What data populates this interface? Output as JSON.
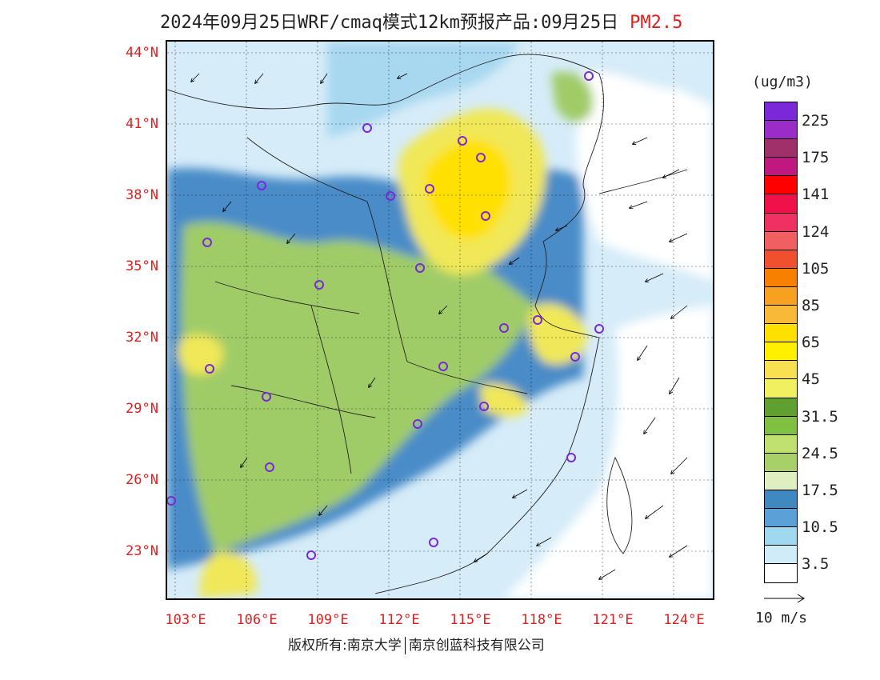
{
  "title": {
    "main": "2024年09月25日WRF/cmaq模式12km预报产品:09月25日",
    "pollutant": "PM2.5"
  },
  "lat_labels": [
    "44°N",
    "41°N",
    "38°N",
    "35°N",
    "32°N",
    "29°N",
    "26°N",
    "23°N"
  ],
  "lon_labels": [
    "103°E",
    "106°E",
    "109°E",
    "112°E",
    "115°E",
    "118°E",
    "121°E",
    "124°E"
  ],
  "colorbar": {
    "unit": "(ug/m3)",
    "colors": [
      "#7b28d8",
      "#9a2cc8",
      "#a0306a",
      "#c01880",
      "#ff0000",
      "#f0104a",
      "#f03060",
      "#f06060",
      "#f05030",
      "#f88000",
      "#f8a020",
      "#f8b838",
      "#ffe000",
      "#fff000",
      "#f8e050",
      "#f0f060",
      "#60a030",
      "#80c040",
      "#c0e070",
      "#a8d068",
      "#e0eec0",
      "#4088c0",
      "#5ca0d8",
      "#a0d8f0",
      "#d0ecf8",
      "#ffffff"
    ],
    "labels": [
      "225",
      "175",
      "141",
      "124",
      "105",
      "85",
      "65",
      "45",
      "31.5",
      "24.5",
      "17.5",
      "10.5",
      "3.5"
    ]
  },
  "wind_reference": {
    "label": "10 m/s"
  },
  "footer": {
    "copyright": "版权所有:南京大学",
    "company": "南京创蓝科技有限公司"
  }
}
